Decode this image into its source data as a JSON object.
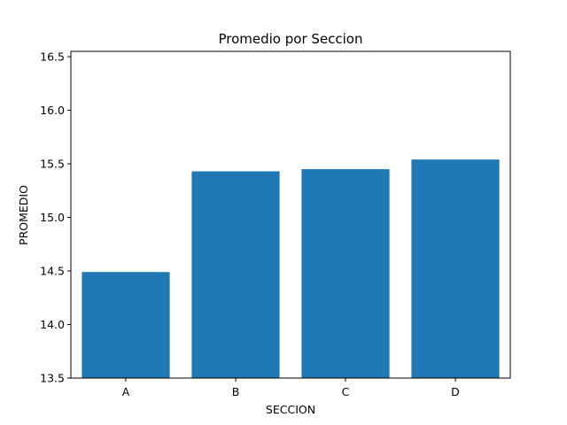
{
  "chart_data": {
    "type": "bar",
    "title": "Promedio por Seccion",
    "xlabel": "SECCION",
    "ylabel": "PROMEDIO",
    "categories": [
      "A",
      "B",
      "C",
      "D"
    ],
    "values": [
      14.49,
      15.43,
      15.45,
      15.54
    ],
    "ylim": [
      13.5,
      16.55
    ],
    "yticks": [
      "13.5",
      "14.0",
      "14.5",
      "15.0",
      "15.5",
      "16.0",
      "16.5"
    ],
    "grid": false,
    "bar_color": "#1f77b4"
  }
}
